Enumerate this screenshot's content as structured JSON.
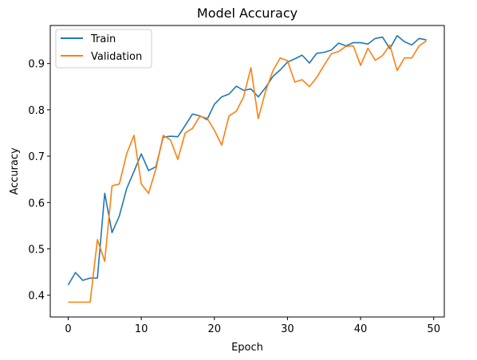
{
  "chart_data": {
    "type": "line",
    "title": "Model Accuracy",
    "xlabel": "Epoch",
    "ylabel": "Accuracy",
    "xlim": [
      -2.45,
      51.45
    ],
    "ylim": [
      0.353,
      0.982
    ],
    "xticks": [
      0,
      10,
      20,
      30,
      40,
      50
    ],
    "yticks": [
      0.4,
      0.5,
      0.6,
      0.7,
      0.8,
      0.9
    ],
    "legend_position": "top-left",
    "grid": false,
    "x": [
      0,
      1,
      2,
      3,
      4,
      5,
      6,
      7,
      8,
      9,
      10,
      11,
      12,
      13,
      14,
      15,
      16,
      17,
      18,
      19,
      20,
      21,
      22,
      23,
      24,
      25,
      26,
      27,
      28,
      29,
      30,
      31,
      32,
      33,
      34,
      35,
      36,
      37,
      38,
      39,
      40,
      41,
      42,
      43,
      44,
      45,
      46,
      47,
      48,
      49
    ],
    "series": [
      {
        "name": "Train",
        "color": "#1f77b4",
        "values": [
          0.422,
          0.449,
          0.432,
          0.437,
          0.437,
          0.62,
          0.535,
          0.571,
          0.63,
          0.667,
          0.705,
          0.669,
          0.677,
          0.741,
          0.743,
          0.742,
          0.766,
          0.791,
          0.787,
          0.779,
          0.812,
          0.828,
          0.834,
          0.851,
          0.842,
          0.845,
          0.828,
          0.848,
          0.872,
          0.886,
          0.903,
          0.91,
          0.918,
          0.901,
          0.922,
          0.924,
          0.929,
          0.944,
          0.938,
          0.945,
          0.945,
          0.942,
          0.954,
          0.957,
          0.932,
          0.96,
          0.947,
          0.94,
          0.954,
          0.951
        ]
      },
      {
        "name": "Validation",
        "color": "#ff7f0e",
        "values": [
          0.385,
          0.385,
          0.385,
          0.385,
          0.52,
          0.473,
          0.636,
          0.64,
          0.705,
          0.745,
          0.64,
          0.62,
          0.672,
          0.745,
          0.735,
          0.693,
          0.75,
          0.76,
          0.786,
          0.782,
          0.756,
          0.724,
          0.787,
          0.797,
          0.828,
          0.891,
          0.781,
          0.84,
          0.884,
          0.912,
          0.906,
          0.86,
          0.865,
          0.85,
          0.87,
          0.896,
          0.921,
          0.926,
          0.937,
          0.938,
          0.896,
          0.933,
          0.907,
          0.917,
          0.94,
          0.885,
          0.912,
          0.912,
          0.938,
          0.949
        ]
      }
    ]
  }
}
